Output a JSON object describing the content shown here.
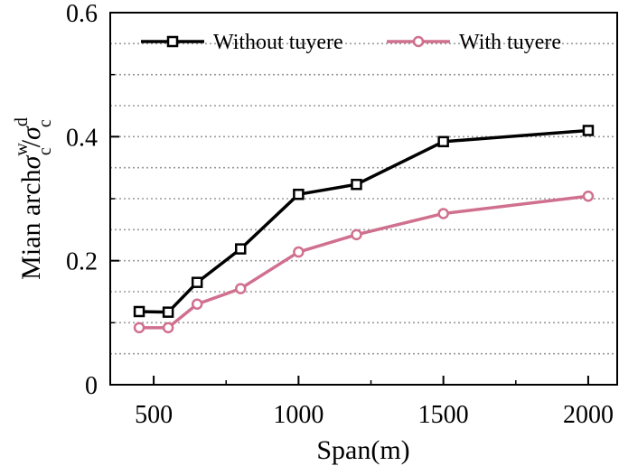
{
  "chart_data": {
    "type": "line",
    "title": "",
    "xlabel": "Span(m)",
    "ylabel": {
      "prefix": "Mian arch",
      "symbol": "σ",
      "numerator_sup": "w",
      "numerator_sub": "c",
      "slash": "/",
      "denominator_sup": "d",
      "denominator_sub": "c"
    },
    "xlim": [
      350,
      2100
    ],
    "ylim": [
      0,
      0.6
    ],
    "xticks": [
      500,
      1000,
      1500,
      2000
    ],
    "xtick_labels": [
      "500",
      "1000",
      "1500",
      "2000"
    ],
    "yticks": [
      0,
      0.2,
      0.4,
      0.6
    ],
    "ytick_labels": [
      "0",
      "0.2",
      "0.4",
      "0.6"
    ],
    "grid": {
      "y": true,
      "style": "dotted",
      "minor_step": 0.05
    },
    "legend_position": "top",
    "x": [
      450,
      550,
      650,
      800,
      1000,
      1200,
      1500,
      2000
    ],
    "series": [
      {
        "name": "Without tuyere",
        "color": "#000000",
        "marker": "square",
        "values": [
          0.118,
          0.117,
          0.165,
          0.219,
          0.307,
          0.323,
          0.392,
          0.41
        ]
      },
      {
        "name": "With tuyere",
        "color": "#d0708f",
        "marker": "circle",
        "values": [
          0.092,
          0.092,
          0.13,
          0.155,
          0.214,
          0.242,
          0.276,
          0.304
        ]
      }
    ]
  }
}
